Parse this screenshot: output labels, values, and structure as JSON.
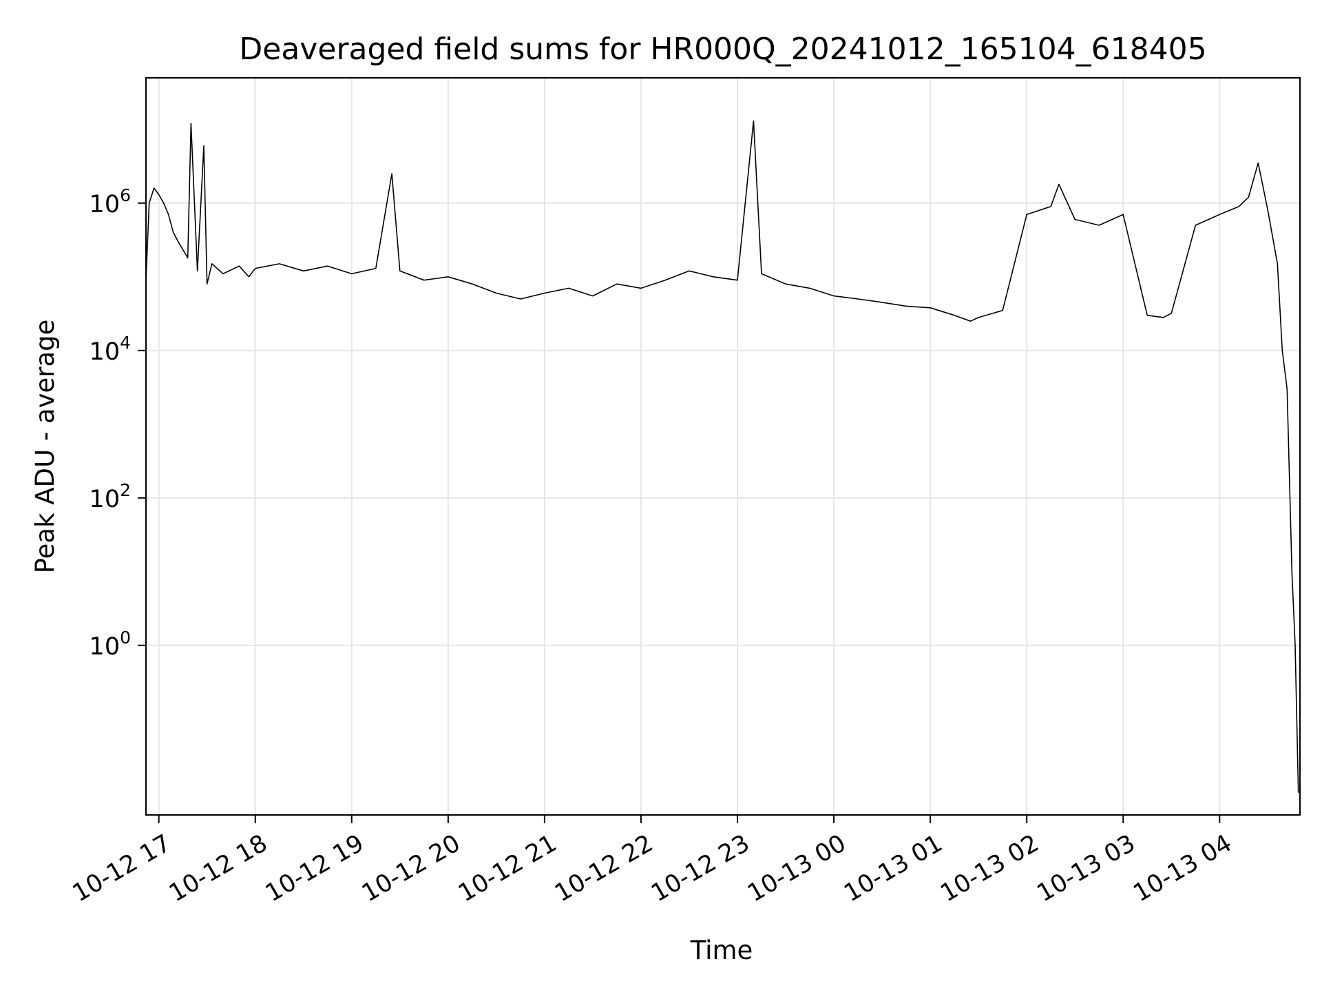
{
  "chart_data": {
    "type": "line",
    "title": "Deaveraged field sums for HR000Q_20241012_165104_618405",
    "xlabel": "Time",
    "ylabel": "Peak ADU - average",
    "yscale": "log",
    "ylim": [
      0.005,
      50000000
    ],
    "xlim": [
      "2024-10-12 16:52",
      "2024-10-13 04:50"
    ],
    "grid": true,
    "color": "#000000",
    "x_ticks": [
      {
        "label": "10-12 17",
        "value": "2024-10-12 17:00"
      },
      {
        "label": "10-12 18",
        "value": "2024-10-12 18:00"
      },
      {
        "label": "10-12 19",
        "value": "2024-10-12 19:00"
      },
      {
        "label": "10-12 20",
        "value": "2024-10-12 20:00"
      },
      {
        "label": "10-12 21",
        "value": "2024-10-12 21:00"
      },
      {
        "label": "10-12 22",
        "value": "2024-10-12 22:00"
      },
      {
        "label": "10-12 23",
        "value": "2024-10-12 23:00"
      },
      {
        "label": "10-13 00",
        "value": "2024-10-13 00:00"
      },
      {
        "label": "10-13 01",
        "value": "2024-10-13 01:00"
      },
      {
        "label": "10-13 02",
        "value": "2024-10-13 02:00"
      },
      {
        "label": "10-13 03",
        "value": "2024-10-13 03:00"
      },
      {
        "label": "10-13 04",
        "value": "2024-10-13 04:00"
      }
    ],
    "y_ticks": [
      {
        "base": "10",
        "exp": "0",
        "value": 1
      },
      {
        "base": "10",
        "exp": "2",
        "value": 100
      },
      {
        "base": "10",
        "exp": "4",
        "value": 10000
      },
      {
        "base": "10",
        "exp": "6",
        "value": 1000000
      }
    ],
    "series": [
      {
        "x": [
          "2024-10-12 16:51",
          "2024-10-12 16:54",
          "2024-10-12 16:57",
          "2024-10-12 17:00",
          "2024-10-12 17:03",
          "2024-10-12 17:06",
          "2024-10-12 17:09",
          "2024-10-12 17:12",
          "2024-10-12 17:18",
          "2024-10-12 17:20",
          "2024-10-12 17:24",
          "2024-10-12 17:28",
          "2024-10-12 17:30",
          "2024-10-12 17:33",
          "2024-10-12 17:40",
          "2024-10-12 17:50",
          "2024-10-12 17:56",
          "2024-10-12 18:00",
          "2024-10-12 18:15",
          "2024-10-12 18:30",
          "2024-10-12 18:45",
          "2024-10-12 19:00",
          "2024-10-12 19:15",
          "2024-10-12 19:25",
          "2024-10-12 19:30",
          "2024-10-12 19:45",
          "2024-10-12 20:00",
          "2024-10-12 20:15",
          "2024-10-12 20:30",
          "2024-10-12 20:45",
          "2024-10-12 21:00",
          "2024-10-12 21:15",
          "2024-10-12 21:30",
          "2024-10-12 21:45",
          "2024-10-12 22:00",
          "2024-10-12 22:15",
          "2024-10-12 22:30",
          "2024-10-12 22:45",
          "2024-10-12 23:00",
          "2024-10-12 23:10",
          "2024-10-12 23:15",
          "2024-10-12 23:30",
          "2024-10-12 23:45",
          "2024-10-13 00:00",
          "2024-10-13 00:15",
          "2024-10-13 00:30",
          "2024-10-13 00:45",
          "2024-10-13 01:00",
          "2024-10-13 01:15",
          "2024-10-13 01:25",
          "2024-10-13 01:30",
          "2024-10-13 01:45",
          "2024-10-13 02:00",
          "2024-10-13 02:15",
          "2024-10-13 02:20",
          "2024-10-13 02:30",
          "2024-10-13 02:45",
          "2024-10-13 03:00",
          "2024-10-13 03:15",
          "2024-10-13 03:25",
          "2024-10-13 03:30",
          "2024-10-13 03:45",
          "2024-10-13 04:00",
          "2024-10-13 04:12",
          "2024-10-13 04:18",
          "2024-10-13 04:24",
          "2024-10-13 04:30",
          "2024-10-13 04:36",
          "2024-10-13 04:39",
          "2024-10-13 04:42",
          "2024-10-13 04:45",
          "2024-10-13 04:47",
          "2024-10-13 04:49"
        ],
        "values": [
          90000,
          1000000,
          1600000,
          1300000,
          1000000,
          700000,
          400000,
          300000,
          180000,
          12000000,
          120000,
          6000000,
          80000,
          150000,
          110000,
          140000,
          100000,
          130000,
          150000,
          120000,
          140000,
          110000,
          130000,
          2500000,
          120000,
          90000,
          100000,
          80000,
          60000,
          50000,
          60000,
          70000,
          55000,
          80000,
          70000,
          90000,
          120000,
          100000,
          90000,
          13000000,
          110000,
          80000,
          70000,
          55000,
          50000,
          45000,
          40000,
          38000,
          30000,
          25000,
          28000,
          35000,
          700000,
          900000,
          1800000,
          600000,
          500000,
          700000,
          30000,
          28000,
          32000,
          500000,
          700000,
          900000,
          1200000,
          3500000,
          800000,
          150000,
          10000,
          3000,
          10,
          1,
          0.01
        ]
      }
    ]
  }
}
